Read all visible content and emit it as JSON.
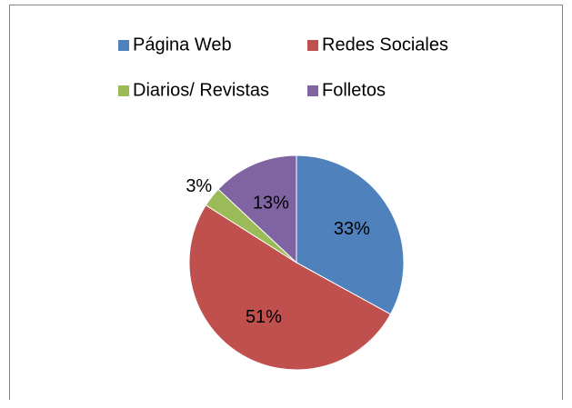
{
  "chart_data": {
    "type": "pie",
    "categories": [
      "Página Web",
      "Redes Sociales",
      "Diarios/ Revistas",
      "Folletos"
    ],
    "values": [
      33,
      51,
      3,
      13
    ],
    "value_labels": [
      "33%",
      "51%",
      "3%",
      "13%"
    ],
    "colors": [
      "#4f81bd",
      "#c0504d",
      "#9bbb59",
      "#8064a2"
    ],
    "legend": "top"
  }
}
